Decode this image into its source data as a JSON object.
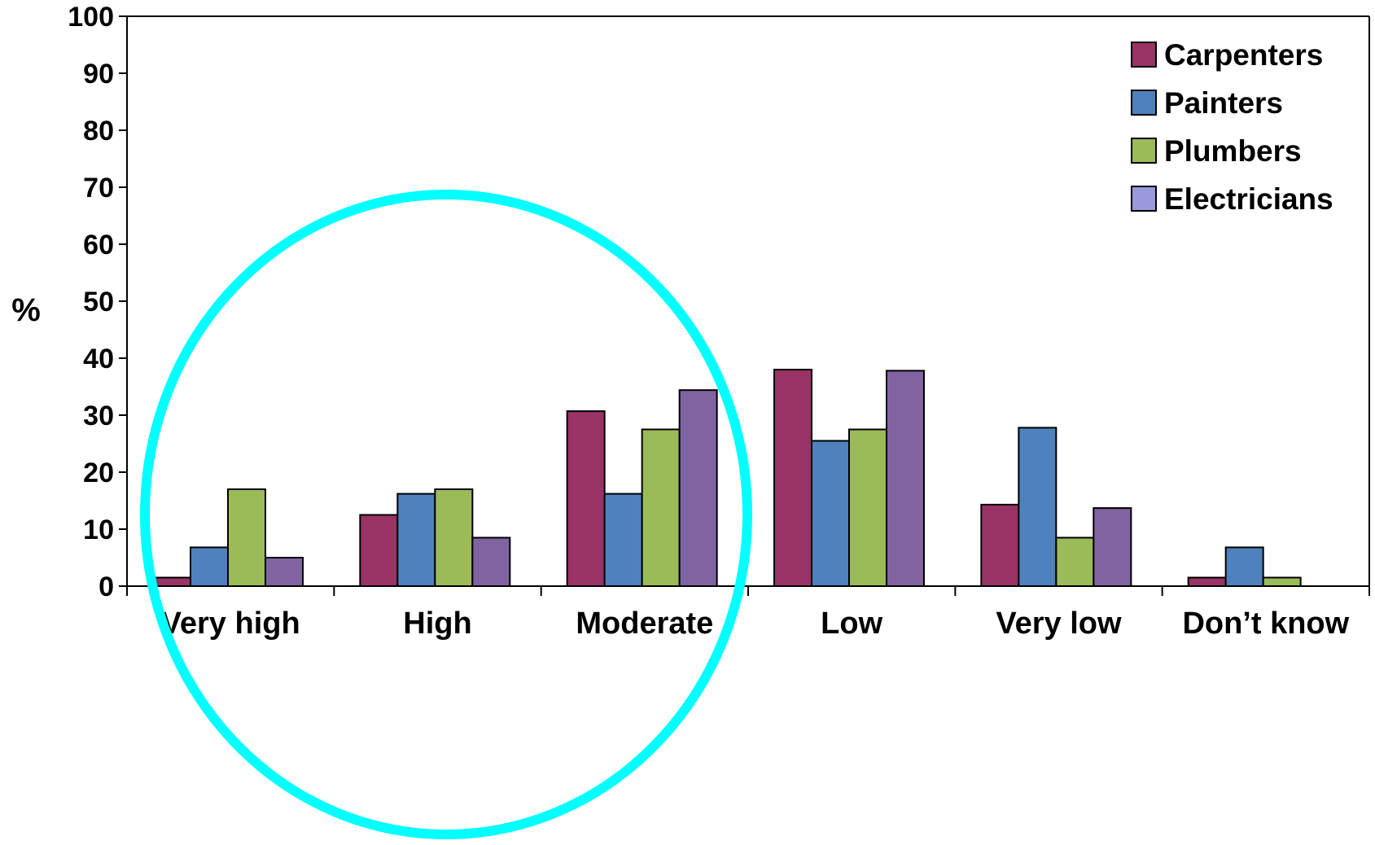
{
  "chart_data": {
    "type": "bar",
    "title": "",
    "xlabel": "",
    "ylabel": "%",
    "ylim": [
      0,
      100
    ],
    "yticks": [
      0,
      10,
      20,
      30,
      40,
      50,
      60,
      70,
      80,
      90,
      100
    ],
    "grid": false,
    "legend_position": "top-right",
    "categories": [
      "Very high",
      "High",
      "Moderate",
      "Low",
      "Very low",
      "Don’t know"
    ],
    "series": [
      {
        "name": "Carpenters",
        "color": "#993366",
        "values": [
          1.5,
          12.5,
          30.7,
          38,
          14.3,
          1.5
        ]
      },
      {
        "name": "Painters",
        "color": "#4F81BD",
        "values": [
          6.8,
          16.2,
          16.2,
          25.5,
          27.8,
          6.8
        ]
      },
      {
        "name": "Plumbers",
        "color": "#9BBB59",
        "values": [
          17,
          17,
          27.5,
          27.5,
          8.5,
          1.5
        ]
      },
      {
        "name": "Electricians",
        "color": "#8064A2",
        "values": [
          5,
          8.5,
          34.4,
          37.8,
          13.7,
          null
        ]
      }
    ],
    "legend_swatch_colors": [
      "#993366",
      "#4F81BD",
      "#9BBB59",
      "#9999DD"
    ],
    "annotation": {
      "shape": "circle",
      "color": "#00FFFF",
      "encloses": [
        "Very high",
        "High",
        "Moderate"
      ]
    }
  }
}
